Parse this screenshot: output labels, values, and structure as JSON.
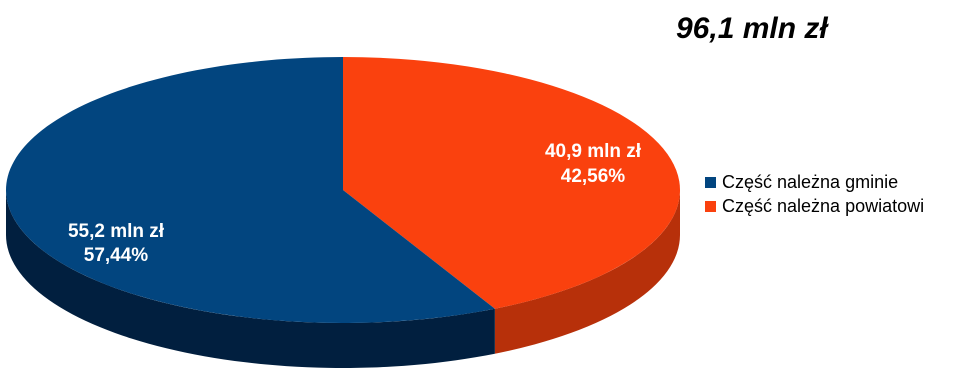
{
  "total_label": "96,1 mln zł",
  "colors": {
    "gmina": "#02457f",
    "gmina_side": "#011f3f",
    "powiat": "#fa410e",
    "powiat_side": "#b7300a"
  },
  "chart_data": {
    "type": "pie",
    "title": "96,1 mln zł",
    "slices": [
      {
        "name": "Część należna gminie",
        "value": 55.2,
        "percent": 57.44,
        "value_label": "55,2 mln zł",
        "percent_label": "57,44%",
        "color": "#02457f"
      },
      {
        "name": "Część należna powiatowi",
        "value": 40.9,
        "percent": 42.56,
        "value_label": "40,9 mln zł",
        "percent_label": "42,56%",
        "color": "#fa410e"
      }
    ],
    "legend_position": "right",
    "three_d": true
  }
}
